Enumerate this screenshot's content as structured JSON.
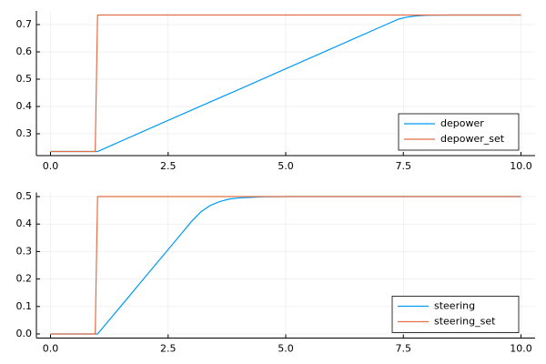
{
  "chart_data": [
    {
      "type": "line",
      "legend": "bottomright",
      "grid": true,
      "x": [
        0,
        0.95,
        1.0,
        2,
        3,
        4,
        5,
        6,
        7,
        7.4,
        7.6,
        7.8,
        8.0,
        8.5,
        10
      ],
      "series": [
        {
          "name": "depower",
          "color": "#009af9",
          "values": [
            0.235,
            0.235,
            0.235,
            0.311,
            0.387,
            0.462,
            0.538,
            0.614,
            0.69,
            0.72,
            0.728,
            0.732,
            0.734,
            0.735,
            0.735
          ]
        },
        {
          "name": "depower_set",
          "color": "#e26f46",
          "values": [
            0.235,
            0.235,
            0.735,
            0.735,
            0.735,
            0.735,
            0.735,
            0.735,
            0.735,
            0.735,
            0.735,
            0.735,
            0.735,
            0.735,
            0.735
          ]
        }
      ],
      "xlim": [
        -0.3,
        10.3
      ],
      "xticks": [
        {
          "value": 0,
          "label": "0.0"
        },
        2.5,
        {
          "value": 5,
          "label": "5.0"
        },
        7.5,
        {
          "value": 10,
          "label": "10.0"
        }
      ],
      "ylim": [
        0.22,
        0.75
      ],
      "yticks": [
        0.3,
        0.4,
        0.5,
        0.6,
        0.7
      ]
    },
    {
      "type": "line",
      "legend": "bottomright",
      "grid": true,
      "x": [
        0,
        0.95,
        1.0,
        1.5,
        2,
        2.5,
        3,
        3.2,
        3.4,
        3.6,
        3.8,
        4,
        4.5,
        5,
        10
      ],
      "series": [
        {
          "name": "steering",
          "color": "#009af9",
          "values": [
            0,
            0,
            0,
            0.102,
            0.205,
            0.307,
            0.41,
            0.445,
            0.468,
            0.482,
            0.491,
            0.495,
            0.499,
            0.5,
            0.5
          ]
        },
        {
          "name": "steering_set",
          "color": "#e26f46",
          "values": [
            0,
            0,
            0.5,
            0.5,
            0.5,
            0.5,
            0.5,
            0.5,
            0.5,
            0.5,
            0.5,
            0.5,
            0.5,
            0.5,
            0.5
          ]
        }
      ],
      "xlim": [
        -0.3,
        10.3
      ],
      "xticks": [
        {
          "value": 0,
          "label": "0.0"
        },
        2.5,
        {
          "value": 5,
          "label": "5.0"
        },
        7.5,
        {
          "value": 10,
          "label": "10.0"
        }
      ],
      "ylim": [
        -0.015,
        0.515
      ],
      "yticks": [
        {
          "value": 0,
          "label": "0.0"
        },
        0.1,
        0.2,
        0.3,
        0.4,
        0.5
      ]
    }
  ]
}
